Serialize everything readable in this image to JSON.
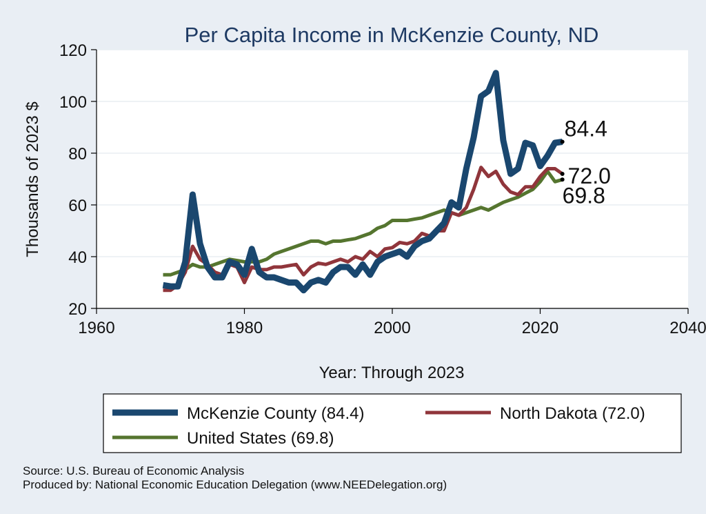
{
  "chart_data": {
    "type": "line",
    "title": "Per Capita Income in McKenzie County, ND",
    "xlabel": "Year: Through 2023",
    "ylabel": "Thousands of 2023 $",
    "xlim": [
      1960,
      2040
    ],
    "ylim": [
      20,
      120
    ],
    "x_ticks": [
      "1960",
      "1980",
      "2000",
      "2020",
      "2040"
    ],
    "y_ticks": [
      "20",
      "40",
      "60",
      "80",
      "100",
      "120"
    ],
    "grid": "horizontal",
    "legend_position": "bottom",
    "x": [
      1969,
      1970,
      1971,
      1972,
      1973,
      1974,
      1975,
      1976,
      1977,
      1978,
      1979,
      1980,
      1981,
      1982,
      1983,
      1984,
      1985,
      1986,
      1987,
      1988,
      1989,
      1990,
      1991,
      1992,
      1993,
      1994,
      1995,
      1996,
      1997,
      1998,
      1999,
      2000,
      2001,
      2002,
      2003,
      2004,
      2005,
      2006,
      2007,
      2008,
      2009,
      2010,
      2011,
      2012,
      2013,
      2014,
      2015,
      2016,
      2017,
      2018,
      2019,
      2020,
      2021,
      2022,
      2023
    ],
    "series": [
      {
        "name": "McKenzie County (84.4)",
        "color": "#1a476f",
        "end_label": "84.4",
        "values": [
          29,
          28.5,
          28.5,
          38,
          64,
          45,
          36,
          32,
          32,
          38,
          37,
          33,
          43,
          34,
          32,
          32,
          31,
          30,
          30,
          27,
          30,
          31,
          30,
          34,
          36,
          36,
          33,
          37,
          33,
          38,
          40,
          41,
          42,
          40,
          44,
          46,
          47,
          50,
          53,
          61,
          59,
          74,
          86,
          102,
          104,
          111,
          85,
          72,
          74,
          84,
          83,
          75,
          79,
          84,
          84.4
        ]
      },
      {
        "name": "North Dakota (72.0)",
        "color": "#90353b",
        "end_label": "72.0",
        "values": [
          27,
          27,
          29,
          34,
          44,
          39,
          37,
          34,
          33,
          37,
          36,
          30,
          36,
          35,
          35,
          36,
          36,
          36.5,
          37,
          33,
          36,
          37.5,
          37,
          38,
          39,
          38,
          40,
          39,
          42,
          40,
          43,
          43.5,
          45.5,
          45,
          46,
          49,
          48,
          50,
          50,
          57,
          56,
          59,
          66,
          74.5,
          71,
          73,
          68,
          65,
          64,
          67,
          67,
          71,
          74,
          74,
          72.0
        ]
      },
      {
        "name": "United States (69.8)",
        "color": "#55752f",
        "end_label": "69.8",
        "values": [
          33,
          33,
          34,
          35,
          37,
          36,
          36,
          37,
          38,
          39,
          38.5,
          38,
          38,
          38,
          39,
          41,
          42,
          43,
          44,
          45,
          46,
          46,
          45,
          46,
          46,
          46.5,
          47,
          48,
          49,
          51,
          52,
          54,
          54,
          54,
          54.5,
          55,
          56,
          57,
          58,
          57,
          56,
          57,
          58,
          59,
          58,
          59.5,
          61,
          62,
          63,
          64.5,
          66,
          69,
          73,
          69,
          69.8
        ]
      }
    ]
  },
  "source_line_1": "Source: U.S. Bureau of Economic Analysis",
  "source_line_2": "Produced by: National Economic Education Delegation (www.NEEDelegation.org)"
}
